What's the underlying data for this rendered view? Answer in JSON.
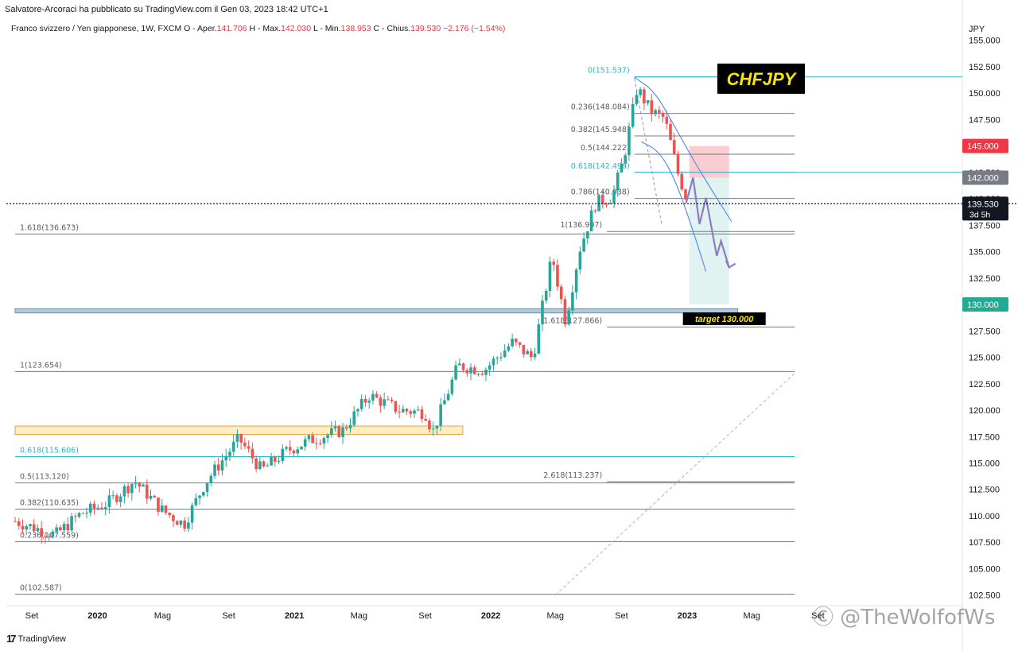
{
  "header": {
    "published": "Salvatore-Arcoraci ha pubblicato su TradingView.com il Gen 03, 2023 18:42 UTC+1",
    "symbol": "Franco svizzero / Yen giapponese, 1W, FXCM",
    "o_label": "O - Aper.",
    "o_value": "141.706",
    "h_label": "H - Max.",
    "h_value": "142.030",
    "l_label": "L - Min.",
    "l_value": "138.953",
    "c_label": "C - Chius.",
    "c_value": "139.530",
    "change": "−2.176 (−1.54%)"
  },
  "footer": {
    "logo": "TradingView",
    "watermark": "Ⓒ @TheWolfofWs"
  },
  "colors": {
    "up": "#26a69a",
    "down": "#ef5350",
    "fib_teal": "#22b8cf",
    "curve": "#5b8def",
    "path": "#8e7cc3"
  },
  "chart_data": {
    "type": "candlestick",
    "title": "CHFJPY",
    "currency": "JPY",
    "timeframe": "1W",
    "ylim": [
      101.5,
      155.5
    ],
    "y_ticks": [
      102.5,
      105,
      107.5,
      110,
      112.5,
      115,
      117.5,
      120,
      122.5,
      125,
      127.5,
      130,
      132.5,
      135,
      137.5,
      140,
      142.5,
      145,
      147.5,
      150,
      152.5,
      155
    ],
    "y_tick_labels": [
      "102.500",
      "105.000",
      "107.500",
      "110.000",
      "112.500",
      "115.000",
      "117.500",
      "120.000",
      "122.500",
      "125.000",
      "127.500",
      "130.000",
      "132.500",
      "135.000",
      "137.500",
      "140.000",
      "142.500",
      "145.000",
      "147.500",
      "150.000",
      "152.500",
      "155.000"
    ],
    "x_ticks": [
      {
        "label": "Set",
        "date": "2019-09-01",
        "bold": false
      },
      {
        "label": "2020",
        "date": "2020-01-01",
        "bold": true
      },
      {
        "label": "Mag",
        "date": "2020-05-01",
        "bold": false
      },
      {
        "label": "Set",
        "date": "2020-09-01",
        "bold": false
      },
      {
        "label": "2021",
        "date": "2021-01-01",
        "bold": true
      },
      {
        "label": "Mag",
        "date": "2021-05-01",
        "bold": false
      },
      {
        "label": "Set",
        "date": "2021-09-01",
        "bold": false
      },
      {
        "label": "2022",
        "date": "2022-01-01",
        "bold": true
      },
      {
        "label": "Mag",
        "date": "2022-05-01",
        "bold": false
      },
      {
        "label": "Set",
        "date": "2022-09-01",
        "bold": false
      },
      {
        "label": "2023",
        "date": "2023-01-01",
        "bold": true
      },
      {
        "label": "Mag",
        "date": "2023-05-01",
        "bold": false
      },
      {
        "label": "Set",
        "date": "2023-09-01",
        "bold": false
      }
    ],
    "price_anchors": [
      [
        "2019-08-01",
        109.5
      ],
      [
        "2019-10-15",
        108.2
      ],
      [
        "2019-12-01",
        110.2
      ],
      [
        "2020-01-20",
        111.2
      ],
      [
        "2020-03-10",
        113.3
      ],
      [
        "2020-05-01",
        110.5
      ],
      [
        "2020-06-10",
        109.2
      ],
      [
        "2020-07-20",
        113.2
      ],
      [
        "2020-09-20",
        117.3
      ],
      [
        "2020-11-01",
        114.3
      ],
      [
        "2020-12-20",
        116.2
      ],
      [
        "2021-02-01",
        117.2
      ],
      [
        "2021-04-01",
        118.1
      ],
      [
        "2021-05-20",
        121.4
      ],
      [
        "2021-07-15",
        120.0
      ],
      [
        "2021-09-01",
        119.8
      ],
      [
        "2021-09-15",
        117.9
      ],
      [
        "2021-11-01",
        124.2
      ],
      [
        "2021-12-20",
        123.8
      ],
      [
        "2022-02-10",
        126.4
      ],
      [
        "2022-03-20",
        124.9
      ],
      [
        "2022-04-25",
        134.6
      ],
      [
        "2022-05-20",
        128.4
      ],
      [
        "2022-06-15",
        135.2
      ],
      [
        "2022-07-15",
        139.6
      ],
      [
        "2022-08-15",
        140.2
      ],
      [
        "2022-09-05",
        143.8
      ],
      [
        "2022-09-30",
        150.5
      ],
      [
        "2022-10-25",
        148.3
      ],
      [
        "2022-11-20",
        147.6
      ],
      [
        "2022-12-15",
        142.4
      ],
      [
        "2023-01-03",
        139.53
      ]
    ],
    "current_price": 139.53,
    "current_price_label": "139.530",
    "countdown": "3d 5h",
    "price_tags": [
      {
        "price": 145.0,
        "label": "145.000",
        "color": "#f23645"
      },
      {
        "price": 142.0,
        "label": "142.000",
        "color": "#787b86"
      },
      {
        "price": 130.0,
        "label": "130.000",
        "color": "#22ab94"
      }
    ],
    "fib_levels": [
      {
        "label": "0(151.537)",
        "price": 151.537,
        "start": "2022-09-25",
        "color": "#22b8cf"
      },
      {
        "label": "0.236(148.084)",
        "price": 148.084,
        "start": "2022-09-25",
        "color": "#787b86"
      },
      {
        "label": "0.382(145.948)",
        "price": 145.948,
        "start": "2022-09-25",
        "color": "#787b86"
      },
      {
        "label": "0.5(144.222)",
        "price": 144.222,
        "start": "2022-09-25",
        "color": "#787b86"
      },
      {
        "label": "0.618(142.496)",
        "price": 142.496,
        "start": "2022-09-25",
        "color": "#22b8cf"
      },
      {
        "label": "0.786(140.038)",
        "price": 140.038,
        "start": "2022-09-25",
        "color": "#787b86"
      },
      {
        "label": "1(136.907)",
        "price": 136.907,
        "start": "2022-08-05",
        "color": "#787b86"
      },
      {
        "label": "1.618(127.866)",
        "price": 127.866,
        "start": "2022-08-05",
        "color": "#787b86"
      },
      {
        "label": "2.618(113.237)",
        "price": 113.237,
        "start": "2022-08-05",
        "color": "#787b86"
      },
      {
        "label": "1.618(136.673)",
        "price": 136.673,
        "start": "2019-08-01",
        "color": "#787b86"
      },
      {
        "label": "1(123.654)",
        "price": 123.654,
        "start": "2019-08-01",
        "color": "#787b86"
      },
      {
        "label": "0.618(115.606)",
        "price": 115.606,
        "start": "2019-08-01",
        "color": "#22b8cf"
      },
      {
        "label": "0.5(113.120)",
        "price": 113.12,
        "start": "2019-08-01",
        "color": "#787b86"
      },
      {
        "label": "0.382(110.635)",
        "price": 110.635,
        "start": "2019-08-01",
        "color": "#787b86"
      },
      {
        "label": "0.236(107.559)",
        "price": 107.559,
        "start": "2019-08-01",
        "color": "#787b86"
      },
      {
        "label": "0(102.587)",
        "price": 102.587,
        "start": "2019-08-01",
        "color": "#787b86"
      }
    ],
    "support_zone": {
      "from": 129.2,
      "to": 129.6,
      "start": "2019-08-01",
      "end": "2023-04-05"
    },
    "yellow_zone": {
      "from": 117.7,
      "to": 118.5,
      "start": "2019-08-01",
      "end": "2021-11-10"
    },
    "stop_box": {
      "from": 142.0,
      "to": 145.0,
      "start": "2023-01-05",
      "end": "2023-03-20"
    },
    "target_box": {
      "from": 130.0,
      "to": 142.0,
      "start": "2023-01-05",
      "end": "2023-03-20"
    },
    "target_label": "target 130.000",
    "projected_path": [
      [
        "2022-12-30",
        139.6
      ],
      [
        "2023-01-12",
        142.0
      ],
      [
        "2023-01-24",
        137.6
      ],
      [
        "2023-02-05",
        140.1
      ],
      [
        "2023-02-25",
        134.6
      ],
      [
        "2023-03-05",
        136.0
      ],
      [
        "2023-03-20",
        133.5
      ]
    ],
    "curves": [
      [
        [
          "2022-10-08",
          145.4
        ],
        [
          "2022-11-10",
          144.5
        ],
        [
          "2022-12-10",
          141.8
        ],
        [
          "2023-01-12",
          137.0
        ],
        [
          "2023-02-05",
          133.1
        ]
      ],
      [
        [
          "2022-09-25",
          151.5
        ],
        [
          "2022-11-01",
          150.2
        ],
        [
          "2022-12-05",
          147.2
        ],
        [
          "2023-01-20",
          143.0
        ],
        [
          "2023-03-25",
          137.8
        ]
      ]
    ],
    "dashed_line": [
      [
        "2022-09-25",
        151.4
      ],
      [
        "2022-11-15",
        137.5
      ]
    ],
    "trend_line": [
      [
        "2022-05-01",
        102.5
      ],
      [
        "2023-07-20",
        123.5
      ]
    ]
  }
}
